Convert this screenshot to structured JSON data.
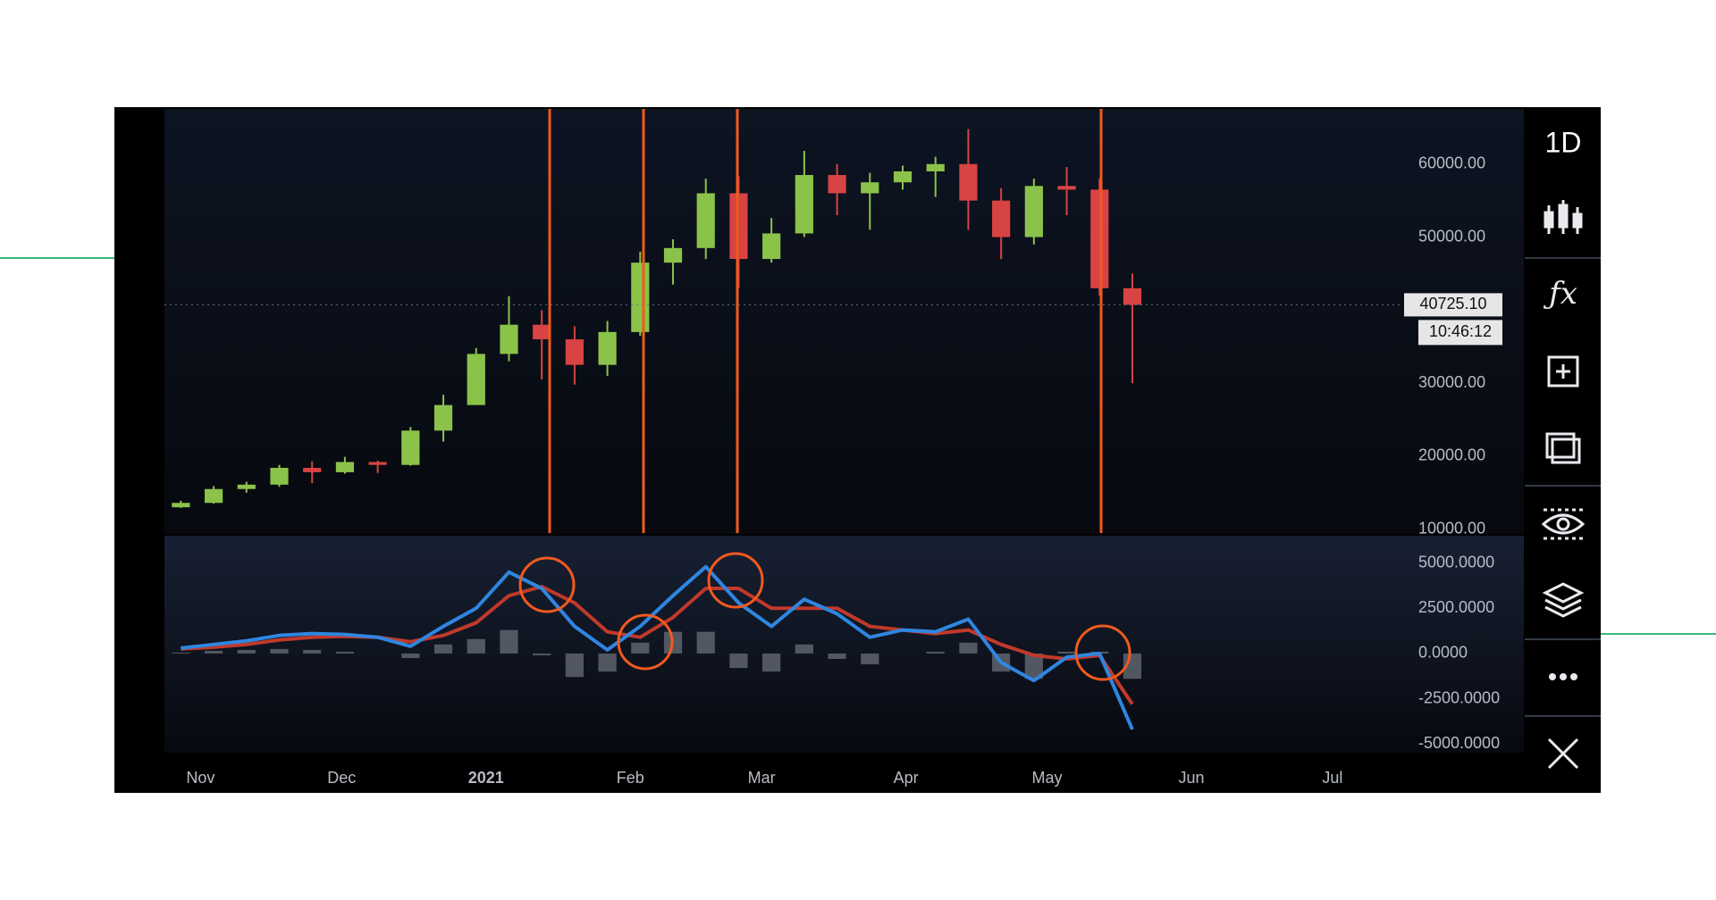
{
  "toolbar": {
    "interval": "1D"
  },
  "chart_data": [
    {
      "type": "candlestick",
      "x": [
        0.5,
        1.5,
        2.5,
        3.5,
        4.5,
        5.5,
        6.5,
        7.5,
        8.5,
        9.5,
        10.5,
        11.5,
        12.5,
        13.5,
        14.5,
        15.5,
        16.5,
        17.5,
        18.5,
        19.5,
        20.5,
        21.5,
        22.5,
        23.5,
        24.5,
        25.5,
        26.5,
        27.5,
        28.5,
        29.5
      ],
      "open": [
        13000,
        13600,
        15500,
        16100,
        18400,
        17800,
        19200,
        18800,
        23500,
        27000,
        34000,
        38000,
        36000,
        32500,
        37000,
        46500,
        48500,
        56000,
        47000,
        50500,
        58500,
        56000,
        57500,
        59000,
        60000,
        55000,
        50000,
        57000,
        56500,
        43000
      ],
      "high": [
        13900,
        15900,
        16500,
        18800,
        19300,
        19900,
        19400,
        24000,
        28400,
        34800,
        41900,
        40000,
        37800,
        38500,
        48000,
        49700,
        58000,
        58300,
        52600,
        61800,
        60000,
        58800,
        59800,
        61000,
        64800,
        56700,
        58000,
        59600,
        58000,
        45000
      ],
      "low": [
        12900,
        13500,
        15000,
        15800,
        16300,
        17600,
        17700,
        18700,
        22000,
        27000,
        33000,
        30500,
        29800,
        31000,
        36500,
        43500,
        47000,
        43000,
        46500,
        50000,
        53000,
        51000,
        56500,
        55500,
        51000,
        47000,
        49000,
        53000,
        42000,
        30000
      ],
      "close": [
        13600,
        15500,
        16100,
        18400,
        17800,
        19200,
        18800,
        23500,
        27000,
        34000,
        38000,
        36000,
        32500,
        37000,
        46500,
        48500,
        56000,
        47000,
        50500,
        58500,
        56000,
        57500,
        59000,
        60000,
        55000,
        50000,
        57000,
        56500,
        43000,
        40725.1
      ],
      "up_color": "#8bc34a",
      "down_color": "#d84343",
      "ylim": [
        9350,
        67550
      ],
      "yticks": [
        {
          "value": 10000,
          "label": "10000.00"
        },
        {
          "value": 20000,
          "label": "20000.00"
        },
        {
          "value": 30000,
          "label": "30000.00"
        },
        {
          "value": 50000,
          "label": "50000.00"
        },
        {
          "value": 60000,
          "label": "60000.00"
        }
      ],
      "xlim": [
        0,
        37.7
      ],
      "xticks": [
        {
          "value": 1.1,
          "label": "Nov"
        },
        {
          "value": 5.4,
          "label": "Dec"
        },
        {
          "value": 9.8,
          "label": "2021"
        },
        {
          "value": 14.2,
          "label": "Feb"
        },
        {
          "value": 18.2,
          "label": "Mar"
        },
        {
          "value": 22.6,
          "label": "Apr"
        },
        {
          "value": 26.9,
          "label": "May"
        },
        {
          "value": 31.3,
          "label": "Jun"
        },
        {
          "value": 35.6,
          "label": "Jul"
        }
      ],
      "last_price": {
        "value": 40725.1,
        "label": "40725.10"
      },
      "countdown": "10:46:12"
    },
    {
      "type": "macd",
      "x": [
        0.5,
        1.5,
        2.5,
        3.5,
        4.5,
        5.5,
        6.5,
        7.5,
        8.5,
        9.5,
        10.5,
        11.5,
        12.5,
        13.5,
        14.5,
        15.5,
        16.5,
        17.5,
        18.5,
        19.5,
        20.5,
        21.5,
        22.5,
        23.5,
        24.5,
        25.5,
        26.5,
        27.5,
        28.5,
        29.5
      ],
      "macd": {
        "color": "#2f86e0",
        "values": [
          300,
          500,
          700,
          1000,
          1100,
          1050,
          900,
          400,
          1500,
          2500,
          4500,
          3600,
          1500,
          200,
          1500,
          3200,
          4800,
          2800,
          1500,
          3000,
          2200,
          900,
          1300,
          1200,
          1900,
          -500,
          -1500,
          -200,
          0,
          -4200
        ]
      },
      "signal": {
        "color": "#c0392b",
        "values": [
          250,
          350,
          500,
          750,
          900,
          950,
          900,
          650,
          1000,
          1700,
          3200,
          3700,
          2800,
          1200,
          900,
          2000,
          3600,
          3600,
          2500,
          2500,
          2500,
          1500,
          1300,
          1100,
          1300,
          500,
          -100,
          -300,
          -100,
          -2800
        ]
      },
      "histogram": {
        "color": "#8a8f99",
        "values": [
          50,
          150,
          200,
          250,
          200,
          100,
          0,
          -250,
          500,
          800,
          1300,
          -100,
          -1300,
          -1000,
          600,
          1200,
          1200,
          -800,
          -1000,
          500,
          -300,
          -600,
          0,
          100,
          600,
          -1000,
          -1400,
          100,
          100,
          -1400
        ]
      },
      "ylim": [
        -5485,
        6515
      ],
      "yticks": [
        {
          "value": -5000,
          "label": "-5000.0000"
        },
        {
          "value": -2500,
          "label": "-2500.0000"
        },
        {
          "value": 0,
          "label": "0.0000"
        },
        {
          "value": 2500,
          "label": "2500.0000"
        },
        {
          "value": 5000,
          "label": "5000.0000"
        }
      ]
    }
  ]
}
